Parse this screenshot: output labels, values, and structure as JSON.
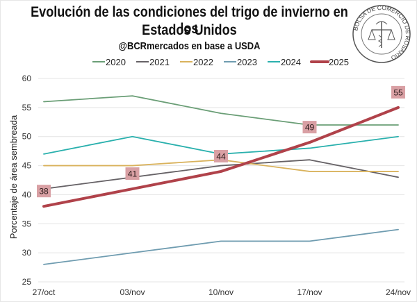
{
  "header": {
    "title_line1": "Evolución de las condiciones del trigo de invierno en los",
    "title_line2": "Estados Unidos",
    "subtitle": "@BCRmercados en base a USDA",
    "logo_text": "BOLSA DE COMERCIO DE ROSARIO"
  },
  "chart_data": {
    "type": "line",
    "title": "Evolución de las condiciones del trigo de invierno en los Estados Unidos",
    "subtitle": "@BCRmercados en base a USDA",
    "xlabel": "",
    "ylabel": "Porcentaje de área sembreada",
    "categories": [
      "27/oct",
      "03/nov",
      "10/nov",
      "17/nov",
      "24/nov"
    ],
    "ylim": [
      25,
      60
    ],
    "yticks": [
      25,
      30,
      35,
      40,
      45,
      50,
      55,
      60
    ],
    "grid": true,
    "legend_position": "top-center",
    "series": [
      {
        "name": "2020",
        "color": "#6a9e76",
        "values": [
          56,
          57,
          54,
          52,
          52
        ],
        "emphasis": false
      },
      {
        "name": "2021",
        "color": "#666266",
        "values": [
          41,
          43,
          45,
          46,
          43
        ],
        "emphasis": false
      },
      {
        "name": "2022",
        "color": "#d9b25c",
        "values": [
          45,
          45,
          46,
          44,
          44
        ],
        "emphasis": false
      },
      {
        "name": "2023",
        "color": "#6f9cb0",
        "values": [
          28,
          30,
          32,
          32,
          34
        ],
        "emphasis": false
      },
      {
        "name": "2024",
        "color": "#29b0ad",
        "values": [
          47,
          50,
          47,
          48,
          50
        ],
        "emphasis": false
      },
      {
        "name": "2025",
        "color": "#b0424a",
        "values": [
          38,
          41,
          44,
          49,
          55
        ],
        "emphasis": true,
        "data_labels": true
      }
    ],
    "data_label_bg": "#d9a0a4"
  }
}
